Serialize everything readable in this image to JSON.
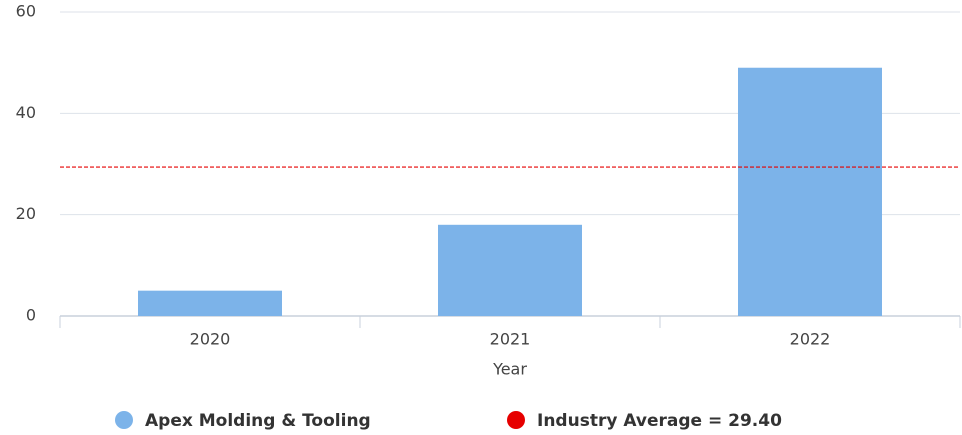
{
  "chart_data": {
    "type": "bar",
    "x_label": "Year",
    "categories": [
      "2020",
      "2021",
      "2022"
    ],
    "series": [
      {
        "name": "Apex Molding & Tooling",
        "color": "#7cb3e9",
        "values": [
          5,
          18,
          49
        ]
      }
    ],
    "reference_line": {
      "label": "Industry Average = 29.40",
      "value": 29.4,
      "color": "#e60000"
    },
    "ylim": [
      0,
      60
    ],
    "yticks": [
      0,
      20,
      40,
      60
    ],
    "grid": true
  }
}
